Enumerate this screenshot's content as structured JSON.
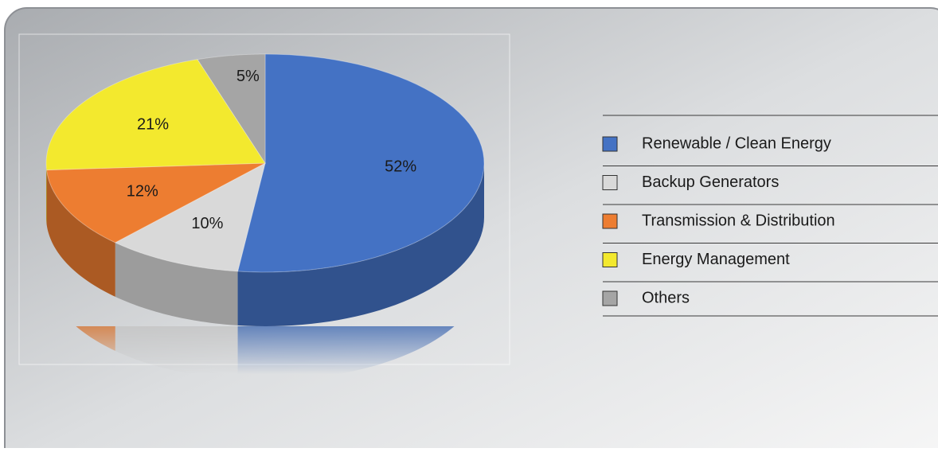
{
  "chart_data": {
    "type": "pie",
    "categories": [
      "Renewable / Clean Energy",
      "Backup Generators",
      "Transmission & Distribution",
      "Energy Management",
      "Others"
    ],
    "values": [
      52,
      10,
      12,
      21,
      5
    ],
    "value_labels": [
      "52%",
      "10%",
      "12%",
      "21%",
      "5%"
    ],
    "colors": [
      "#4472c4",
      "#d9d9d9",
      "#ed7d31",
      "#f3e92e",
      "#a5a5a5"
    ],
    "legend": "right"
  }
}
